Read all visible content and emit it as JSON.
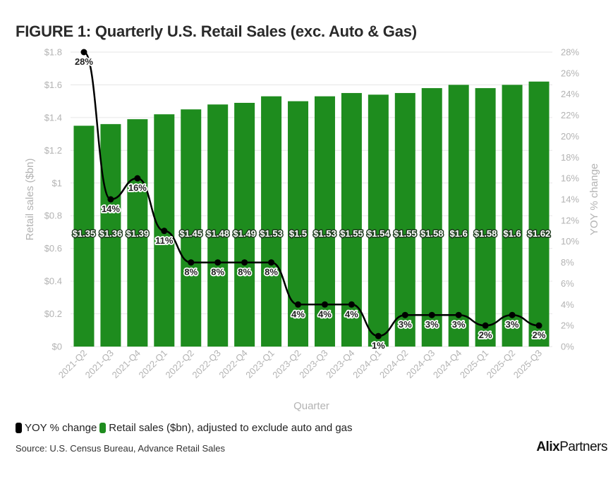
{
  "title": "FIGURE 1: Quarterly U.S. Retail Sales (exc. Auto & Gas)",
  "source": "Source: U.S. Census Bureau, Advance Retail Sales",
  "logo": {
    "part1": "Alix",
    "part2": "Partners"
  },
  "colors": {
    "bar": "#1e8c1e",
    "line": "#000000",
    "grid": "#e6e6e6",
    "axis_text": "#b3b3b3"
  },
  "legend": [
    {
      "label": "YOY % change",
      "color": "#000000"
    },
    {
      "label": "Retail sales ($bn), adjusted to exclude auto and gas",
      "color": "#1e8c1e"
    }
  ],
  "chart_data": {
    "type": "bar+line",
    "title": "FIGURE 1: Quarterly U.S. Retail Sales (exc. Auto & Gas)",
    "xlabel": "Quarter",
    "ylabel": "Retail sales ($bn)",
    "y2label": "YOY % change",
    "ylim": [
      0,
      1.8
    ],
    "y2lim": [
      0,
      28
    ],
    "yticks": [
      "$0",
      "$0.2",
      "$0.4",
      "$0.6",
      "$0.8",
      "$1",
      "$1.2",
      "$1.4",
      "$1.6",
      "$1.8"
    ],
    "y2ticks": [
      "0%",
      "2%",
      "4%",
      "6%",
      "8%",
      "10%",
      "12%",
      "14%",
      "16%",
      "18%",
      "20%",
      "22%",
      "24%",
      "26%",
      "28%"
    ],
    "grid": true,
    "legend_position": "bottom-left",
    "categories": [
      "2021-Q2",
      "2021-Q3",
      "2021-Q4",
      "2022-Q1",
      "2022-Q2",
      "2022-Q3",
      "2022-Q4",
      "2023-Q1",
      "2023-Q2",
      "2023-Q3",
      "2023-Q4",
      "2024-Q1",
      "2024-Q2",
      "2024-Q3",
      "2024-Q4",
      "2025-Q1",
      "2025-Q2",
      "2025-Q3"
    ],
    "series": [
      {
        "name": "Retail sales ($bn), adjusted to exclude auto and gas",
        "type": "bar",
        "axis": "left",
        "values": [
          1.35,
          1.36,
          1.39,
          1.42,
          1.45,
          1.48,
          1.49,
          1.53,
          1.5,
          1.53,
          1.55,
          1.54,
          1.55,
          1.58,
          1.6,
          1.58,
          1.6,
          1.62
        ],
        "labels": [
          "$1.35",
          "$1.36",
          "$1.39",
          "",
          "$1.45",
          "$1.48",
          "$1.49",
          "$1.53",
          "$1.5",
          "$1.53",
          "$1.55",
          "$1.54",
          "$1.55",
          "$1.58",
          "$1.6",
          "$1.58",
          "$1.6",
          "$1.62"
        ]
      },
      {
        "name": "YOY % change",
        "type": "line",
        "axis": "right",
        "values": [
          28,
          14,
          16,
          11,
          8,
          8,
          8,
          8,
          4,
          4,
          4,
          1,
          3,
          3,
          3,
          2,
          3,
          2
        ],
        "labels": [
          "28%",
          "14%",
          "16%",
          "11%",
          "8%",
          "8%",
          "8%",
          "8%",
          "4%",
          "4%",
          "4%",
          "1%",
          "3%",
          "3%",
          "3%",
          "2%",
          "3%",
          "2%"
        ]
      }
    ]
  }
}
